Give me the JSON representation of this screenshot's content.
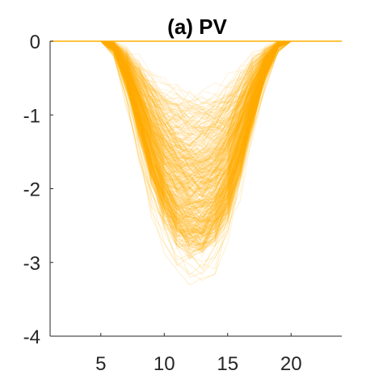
{
  "chart_data": {
    "type": "line",
    "title": "(a) PV",
    "xlabel": "",
    "ylabel": "",
    "xlim": [
      1,
      24
    ],
    "ylim": [
      -4,
      0
    ],
    "xticks": [
      5,
      10,
      15,
      20
    ],
    "yticks": [
      0,
      -1,
      -2,
      -3,
      -4
    ],
    "xtick_labels": [
      "5",
      "10",
      "15",
      "20"
    ],
    "ytick_labels": [
      "0",
      "-1",
      "-2",
      "-3",
      "-4"
    ],
    "grid": false,
    "legend": "none",
    "series_color": "#FFB000",
    "series_count_shown": 500,
    "series_description": "Many overlapping translucent scenario curves, equal to 0 at hours 1–5 and 20–24, dipping between about hour 6 and hour 19 with minimum near hour 12.5.",
    "envelope": {
      "x": [
        1,
        2,
        3,
        4,
        5,
        6,
        7,
        8,
        9,
        10,
        11,
        12,
        13,
        14,
        15,
        16,
        17,
        18,
        19,
        20,
        21,
        22,
        23,
        24
      ],
      "typical_min": [
        0,
        0,
        0,
        0,
        0,
        -0.12,
        -0.55,
        -1.2,
        -1.85,
        -2.35,
        -2.65,
        -2.8,
        -2.8,
        -2.65,
        -2.3,
        -1.7,
        -1.05,
        -0.45,
        -0.08,
        0,
        0,
        0,
        0,
        0
      ],
      "extreme_min": [
        0,
        0,
        0,
        0,
        0,
        -0.2,
        -0.8,
        -1.6,
        -2.3,
        -2.85,
        -3.15,
        -3.32,
        -3.35,
        -3.15,
        -2.7,
        -2.05,
        -1.3,
        -0.6,
        -0.15,
        0,
        0,
        0,
        0,
        0
      ],
      "max": [
        0,
        0,
        0,
        0,
        0,
        0,
        -0.1,
        -0.25,
        -0.4,
        -0.5,
        -0.55,
        -0.6,
        -0.6,
        -0.55,
        -0.5,
        -0.35,
        -0.2,
        -0.08,
        0,
        0,
        0,
        0,
        0,
        0
      ]
    }
  }
}
